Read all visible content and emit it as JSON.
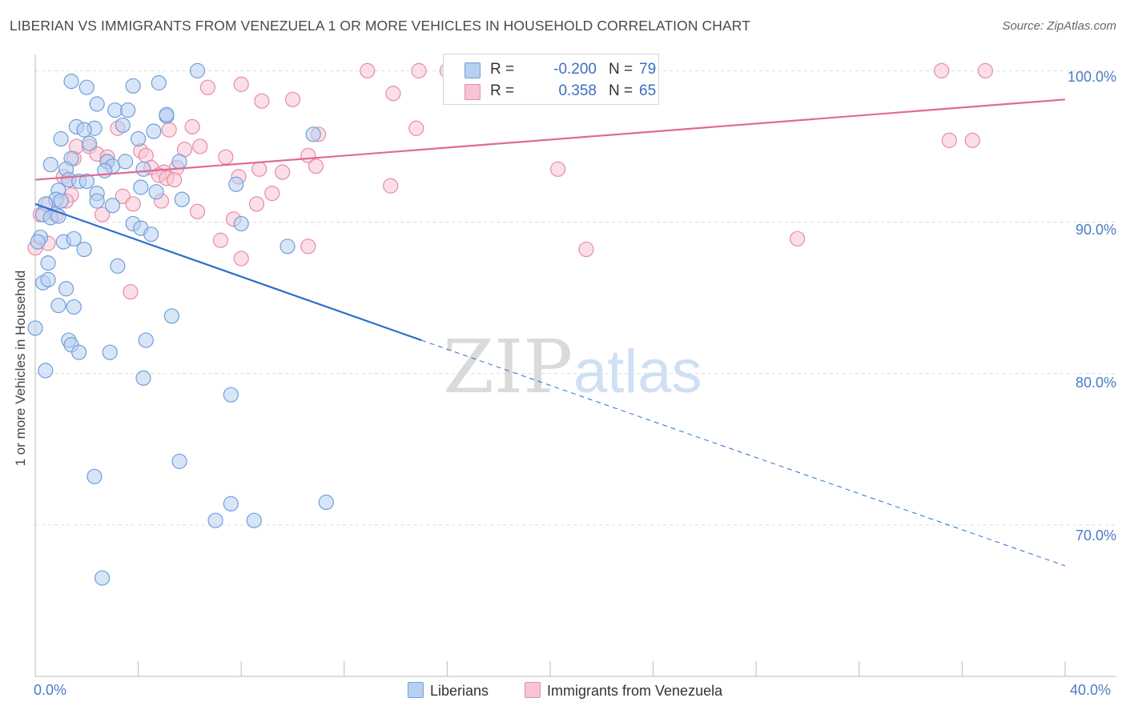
{
  "title": "LIBERIAN VS IMMIGRANTS FROM VENEZUELA 1 OR MORE VEHICLES IN HOUSEHOLD CORRELATION CHART",
  "source": "Source: ZipAtlas.com",
  "watermark": {
    "zip": "ZIP",
    "atlas": "atlas"
  },
  "colors": {
    "blue_fill": "#b8d0f0",
    "blue_stroke": "#6f9fdc",
    "blue_line": "#2a6fce",
    "pink_fill": "#f8c4d4",
    "pink_stroke": "#e88aa8",
    "pink_line": "#e06a92",
    "tick_text": "#4a7cc7",
    "grid": "#dcdcdc"
  },
  "legend": {
    "rows": [
      {
        "series": "Liberians",
        "r_label": "R =",
        "r_value": "-0.200",
        "n_label": "N =",
        "n_value": "79",
        "color": "#b8d0f0",
        "border": "#6f9fdc"
      },
      {
        "series": "Immigrants from Venezuela",
        "r_label": "R =",
        "r_value": "0.358",
        "n_label": "N =",
        "n_value": "65",
        "color": "#f8c4d4",
        "border": "#e88aa8"
      }
    ]
  },
  "chart_data": {
    "type": "scatter",
    "title": "LIBERIAN VS IMMIGRANTS FROM VENEZUELA 1 OR MORE VEHICLES IN HOUSEHOLD CORRELATION CHART",
    "xlabel": "",
    "ylabel": "1 or more Vehicles in Household",
    "xlim": [
      0,
      40
    ],
    "ylim": [
      60.0,
      101.5
    ],
    "x_tick_labels": [
      "0.0%",
      "40.0%"
    ],
    "y_ticks": [
      100,
      90,
      80,
      70
    ],
    "y_tick_labels": [
      "100.0%",
      "90.0%",
      "80.0%",
      "70.0%"
    ],
    "grid": true,
    "legend_position": "bottom",
    "series": [
      {
        "name": "Liberians",
        "trend": {
          "x": [
            0.0,
            15.0,
            40.0
          ],
          "y": [
            91.2,
            82.2,
            67.3
          ],
          "solid_until_x": 15.0
        },
        "points": [
          [
            1.4,
            99.3
          ],
          [
            2.0,
            98.9
          ],
          [
            3.8,
            99.0
          ],
          [
            4.8,
            99.2
          ],
          [
            6.3,
            100.0
          ],
          [
            2.4,
            97.8
          ],
          [
            3.1,
            97.4
          ],
          [
            3.6,
            97.4
          ],
          [
            5.1,
            97.0
          ],
          [
            5.1,
            97.1
          ],
          [
            1.6,
            96.3
          ],
          [
            2.3,
            96.2
          ],
          [
            1.9,
            96.1
          ],
          [
            3.4,
            96.4
          ],
          [
            4.6,
            96.0
          ],
          [
            1.0,
            95.5
          ],
          [
            4.0,
            95.5
          ],
          [
            10.8,
            95.8
          ],
          [
            2.1,
            95.2
          ],
          [
            1.4,
            94.2
          ],
          [
            0.6,
            93.8
          ],
          [
            2.8,
            94.0
          ],
          [
            5.6,
            94.0
          ],
          [
            1.2,
            93.5
          ],
          [
            3.0,
            93.7
          ],
          [
            4.2,
            93.5
          ],
          [
            2.7,
            93.4
          ],
          [
            1.3,
            92.8
          ],
          [
            1.7,
            92.7
          ],
          [
            2.0,
            92.7
          ],
          [
            7.8,
            92.5
          ],
          [
            4.1,
            92.3
          ],
          [
            0.9,
            92.1
          ],
          [
            4.7,
            92.0
          ],
          [
            2.4,
            91.9
          ],
          [
            0.8,
            91.5
          ],
          [
            0.4,
            91.2
          ],
          [
            2.4,
            91.4
          ],
          [
            3.0,
            91.1
          ],
          [
            5.7,
            91.5
          ],
          [
            0.3,
            90.5
          ],
          [
            0.6,
            90.3
          ],
          [
            0.9,
            90.4
          ],
          [
            3.8,
            89.9
          ],
          [
            4.1,
            89.6
          ],
          [
            4.5,
            89.2
          ],
          [
            8.0,
            89.9
          ],
          [
            0.2,
            89.0
          ],
          [
            1.1,
            88.7
          ],
          [
            1.5,
            88.9
          ],
          [
            0.1,
            88.7
          ],
          [
            1.9,
            88.2
          ],
          [
            9.8,
            88.4
          ],
          [
            0.5,
            87.3
          ],
          [
            3.2,
            87.1
          ],
          [
            0.3,
            86.0
          ],
          [
            0.5,
            86.2
          ],
          [
            1.2,
            85.6
          ],
          [
            0.9,
            84.5
          ],
          [
            1.5,
            84.4
          ],
          [
            5.3,
            83.8
          ],
          [
            0.0,
            83.0
          ],
          [
            1.3,
            82.2
          ],
          [
            1.4,
            81.9
          ],
          [
            1.7,
            81.4
          ],
          [
            2.9,
            81.4
          ],
          [
            4.3,
            82.2
          ],
          [
            0.4,
            80.2
          ],
          [
            4.2,
            79.7
          ],
          [
            7.6,
            78.6
          ],
          [
            5.6,
            74.2
          ],
          [
            2.3,
            73.2
          ],
          [
            7.6,
            71.4
          ],
          [
            11.3,
            71.5
          ],
          [
            7.0,
            70.3
          ],
          [
            8.5,
            70.3
          ],
          [
            2.6,
            66.5
          ],
          [
            1.0,
            91.4
          ],
          [
            3.5,
            94.0
          ]
        ]
      },
      {
        "name": "Immigrants from Venezuela",
        "trend": {
          "x": [
            0.0,
            40.0
          ],
          "y": [
            92.8,
            98.1
          ]
        },
        "points": [
          [
            12.9,
            100.0
          ],
          [
            14.9,
            100.0
          ],
          [
            16.0,
            100.0
          ],
          [
            35.2,
            100.0
          ],
          [
            36.9,
            100.0
          ],
          [
            17.0,
            99.0
          ],
          [
            6.7,
            98.9
          ],
          [
            8.0,
            99.1
          ],
          [
            13.9,
            98.5
          ],
          [
            8.8,
            98.0
          ],
          [
            10.0,
            98.1
          ],
          [
            3.2,
            96.2
          ],
          [
            5.2,
            96.1
          ],
          [
            6.1,
            96.3
          ],
          [
            11.0,
            95.8
          ],
          [
            14.8,
            96.2
          ],
          [
            35.5,
            95.4
          ],
          [
            36.4,
            95.4
          ],
          [
            1.5,
            94.2
          ],
          [
            1.6,
            95.0
          ],
          [
            2.1,
            95.0
          ],
          [
            2.4,
            94.5
          ],
          [
            2.8,
            94.3
          ],
          [
            5.8,
            94.8
          ],
          [
            6.4,
            95.0
          ],
          [
            4.1,
            94.7
          ],
          [
            4.3,
            94.4
          ],
          [
            7.4,
            94.3
          ],
          [
            10.6,
            94.4
          ],
          [
            10.9,
            93.7
          ],
          [
            2.8,
            94.0
          ],
          [
            4.5,
            93.6
          ],
          [
            5.0,
            93.3
          ],
          [
            5.5,
            93.6
          ],
          [
            8.7,
            93.5
          ],
          [
            9.6,
            93.3
          ],
          [
            20.3,
            93.5
          ],
          [
            4.8,
            93.1
          ],
          [
            5.1,
            92.9
          ],
          [
            1.1,
            93.0
          ],
          [
            1.3,
            92.8
          ],
          [
            5.4,
            92.8
          ],
          [
            7.9,
            93.0
          ],
          [
            13.8,
            92.4
          ],
          [
            1.4,
            91.8
          ],
          [
            3.4,
            91.7
          ],
          [
            9.2,
            91.9
          ],
          [
            3.8,
            91.2
          ],
          [
            4.9,
            91.4
          ],
          [
            8.6,
            91.2
          ],
          [
            0.5,
            91.2
          ],
          [
            0.8,
            90.5
          ],
          [
            0.2,
            90.5
          ],
          [
            2.6,
            90.5
          ],
          [
            6.3,
            90.7
          ],
          [
            7.7,
            90.2
          ],
          [
            0.0,
            88.3
          ],
          [
            7.2,
            88.8
          ],
          [
            10.6,
            88.4
          ],
          [
            21.4,
            88.2
          ],
          [
            29.6,
            88.9
          ],
          [
            8.0,
            87.6
          ],
          [
            3.7,
            85.4
          ],
          [
            1.2,
            91.4
          ],
          [
            0.5,
            88.6
          ]
        ]
      }
    ]
  }
}
